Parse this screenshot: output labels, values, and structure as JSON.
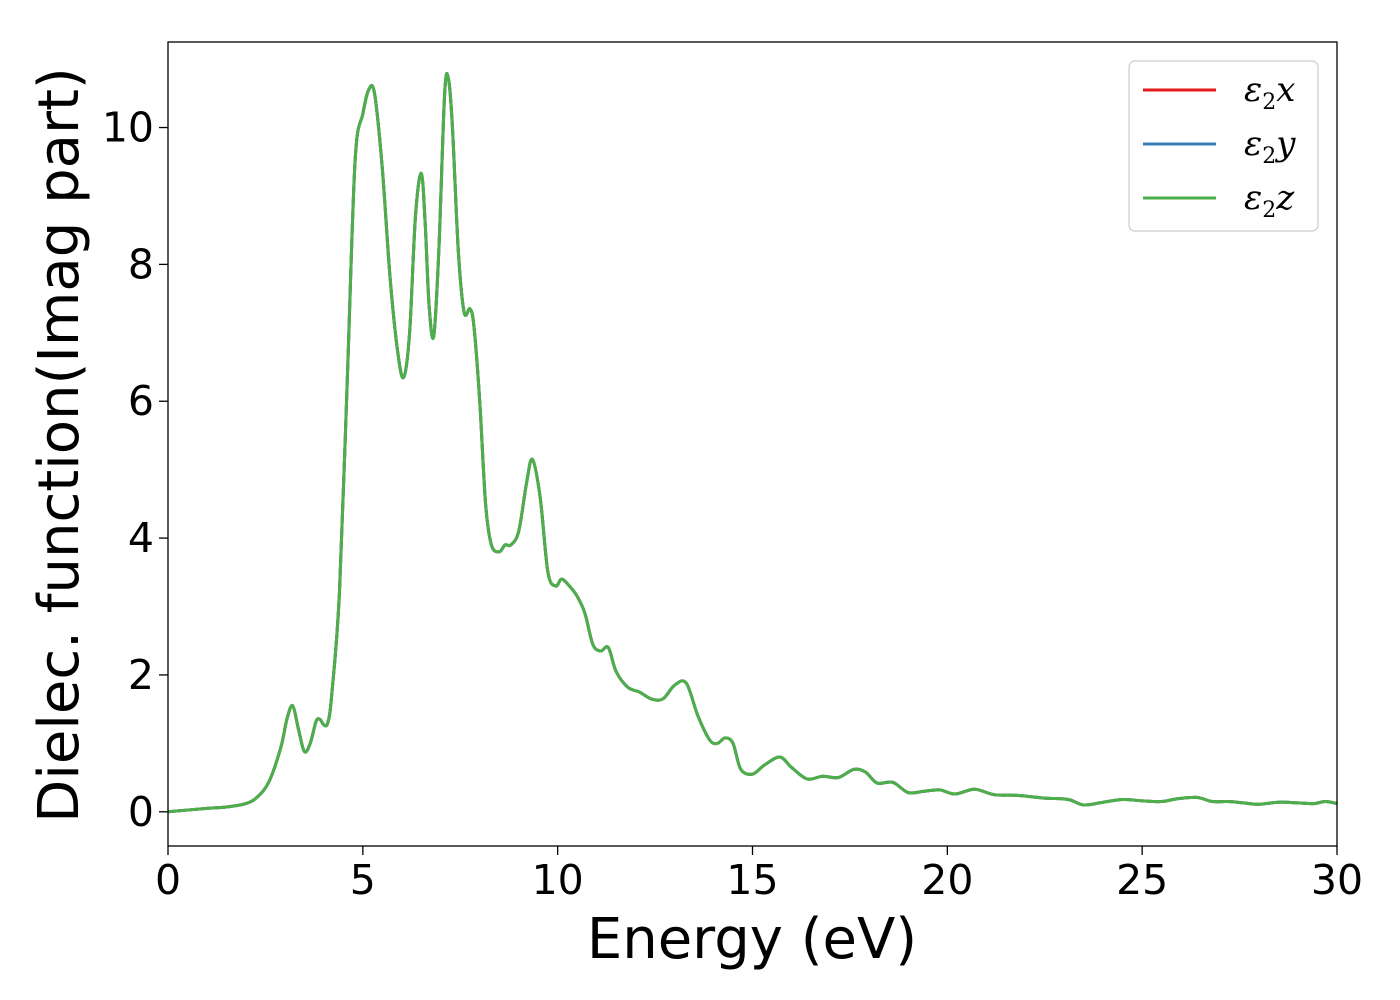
{
  "chart_data": {
    "type": "line",
    "title": "",
    "xlabel": "Energy (eV)",
    "ylabel": "Dielec. function(Imag part)",
    "xlim": [
      0,
      30
    ],
    "ylim": [
      -0.5,
      11.25
    ],
    "xticks": [
      0,
      5,
      10,
      15,
      20,
      25,
      30
    ],
    "xtick_labels": [
      "0",
      "5",
      "10",
      "15",
      "20",
      "25",
      "30"
    ],
    "yticks": [
      0,
      2,
      4,
      6,
      8,
      10
    ],
    "ytick_labels": [
      "0",
      "2",
      "4",
      "6",
      "8",
      "10"
    ],
    "grid": false,
    "legend_position": "top-right",
    "x": [
      0,
      1,
      1.5,
      2,
      2.3,
      2.6,
      2.9,
      3.05,
      3.2,
      3.35,
      3.5,
      3.65,
      3.8,
      3.9,
      4.0,
      4.1,
      4.2,
      4.4,
      4.6,
      4.8,
      5.0,
      5.15,
      5.3,
      5.5,
      5.7,
      5.9,
      6.05,
      6.2,
      6.35,
      6.5,
      6.6,
      6.7,
      6.82,
      6.95,
      7.1,
      7.2,
      7.3,
      7.45,
      7.6,
      7.75,
      7.85,
      8.0,
      8.15,
      8.3,
      8.5,
      8.65,
      8.8,
      9.0,
      9.2,
      9.35,
      9.55,
      9.75,
      9.95,
      10.1,
      10.3,
      10.5,
      10.7,
      10.9,
      11.1,
      11.3,
      11.5,
      11.8,
      12.1,
      12.4,
      12.7,
      13.0,
      13.3,
      13.6,
      13.9,
      14.1,
      14.3,
      14.5,
      14.7,
      15.0,
      15.3,
      15.7,
      16.0,
      16.4,
      16.8,
      17.2,
      17.6,
      17.9,
      18.2,
      18.6,
      19.0,
      19.4,
      19.8,
      20.2,
      20.7,
      21.2,
      21.8,
      22.5,
      23.1,
      23.5,
      24.0,
      24.5,
      25.0,
      25.5,
      25.9,
      26.4,
      26.8,
      27.2,
      27.6,
      28.0,
      28.5,
      29.0,
      29.4,
      29.7,
      30.0
    ],
    "series": [
      {
        "name": "ε2x",
        "color": "#e41a1c",
        "values": [
          0.0,
          0.05,
          0.07,
          0.12,
          0.22,
          0.45,
          0.95,
          1.35,
          1.55,
          1.2,
          0.88,
          1.0,
          1.32,
          1.35,
          1.27,
          1.3,
          1.7,
          3.2,
          6.3,
          9.5,
          10.2,
          10.55,
          10.5,
          9.4,
          7.8,
          6.7,
          6.35,
          7.0,
          8.7,
          9.33,
          8.6,
          7.4,
          6.95,
          8.2,
          10.5,
          10.7,
          10.0,
          8.2,
          7.3,
          7.35,
          7.1,
          6.0,
          4.5,
          3.9,
          3.8,
          3.9,
          3.9,
          4.1,
          4.8,
          5.15,
          4.6,
          3.5,
          3.3,
          3.4,
          3.3,
          3.15,
          2.9,
          2.45,
          2.35,
          2.4,
          2.05,
          1.82,
          1.75,
          1.65,
          1.65,
          1.85,
          1.88,
          1.4,
          1.05,
          1.0,
          1.08,
          1.0,
          0.62,
          0.55,
          0.68,
          0.8,
          0.65,
          0.48,
          0.52,
          0.5,
          0.62,
          0.58,
          0.42,
          0.43,
          0.28,
          0.3,
          0.32,
          0.26,
          0.33,
          0.25,
          0.24,
          0.2,
          0.18,
          0.1,
          0.14,
          0.18,
          0.16,
          0.15,
          0.19,
          0.21,
          0.15,
          0.15,
          0.13,
          0.11,
          0.14,
          0.13,
          0.12,
          0.15,
          0.12
        ]
      },
      {
        "name": "ε2y",
        "color": "#377eb8",
        "values": [
          0.0,
          0.05,
          0.07,
          0.12,
          0.22,
          0.45,
          0.95,
          1.35,
          1.55,
          1.2,
          0.88,
          1.0,
          1.32,
          1.35,
          1.27,
          1.3,
          1.7,
          3.2,
          6.3,
          9.5,
          10.2,
          10.55,
          10.5,
          9.4,
          7.8,
          6.7,
          6.35,
          7.0,
          8.7,
          9.33,
          8.6,
          7.4,
          6.95,
          8.2,
          10.5,
          10.7,
          10.0,
          8.2,
          7.3,
          7.35,
          7.1,
          6.0,
          4.5,
          3.9,
          3.8,
          3.9,
          3.9,
          4.1,
          4.8,
          5.15,
          4.6,
          3.5,
          3.3,
          3.4,
          3.3,
          3.15,
          2.9,
          2.45,
          2.35,
          2.4,
          2.05,
          1.82,
          1.75,
          1.65,
          1.65,
          1.85,
          1.88,
          1.4,
          1.05,
          1.0,
          1.08,
          1.0,
          0.62,
          0.55,
          0.68,
          0.8,
          0.65,
          0.48,
          0.52,
          0.5,
          0.62,
          0.58,
          0.42,
          0.43,
          0.28,
          0.3,
          0.32,
          0.26,
          0.33,
          0.25,
          0.24,
          0.2,
          0.18,
          0.1,
          0.14,
          0.18,
          0.16,
          0.15,
          0.19,
          0.21,
          0.15,
          0.15,
          0.13,
          0.11,
          0.14,
          0.13,
          0.12,
          0.15,
          0.12
        ]
      },
      {
        "name": "ε2z",
        "color": "#4daf4a",
        "values": [
          0.0,
          0.05,
          0.07,
          0.12,
          0.22,
          0.45,
          0.95,
          1.35,
          1.55,
          1.2,
          0.88,
          1.0,
          1.32,
          1.35,
          1.27,
          1.3,
          1.7,
          3.2,
          6.3,
          9.5,
          10.2,
          10.55,
          10.5,
          9.4,
          7.8,
          6.7,
          6.35,
          7.0,
          8.7,
          9.33,
          8.6,
          7.4,
          6.95,
          8.2,
          10.5,
          10.7,
          10.0,
          8.2,
          7.3,
          7.35,
          7.1,
          6.0,
          4.5,
          3.9,
          3.8,
          3.9,
          3.9,
          4.1,
          4.8,
          5.15,
          4.6,
          3.5,
          3.3,
          3.4,
          3.3,
          3.15,
          2.9,
          2.45,
          2.35,
          2.4,
          2.05,
          1.82,
          1.75,
          1.65,
          1.65,
          1.85,
          1.88,
          1.4,
          1.05,
          1.0,
          1.08,
          1.0,
          0.62,
          0.55,
          0.68,
          0.8,
          0.65,
          0.48,
          0.52,
          0.5,
          0.62,
          0.58,
          0.42,
          0.43,
          0.28,
          0.3,
          0.32,
          0.26,
          0.33,
          0.25,
          0.24,
          0.2,
          0.18,
          0.1,
          0.14,
          0.18,
          0.16,
          0.15,
          0.19,
          0.21,
          0.15,
          0.15,
          0.13,
          0.11,
          0.14,
          0.13,
          0.12,
          0.15,
          0.12
        ]
      }
    ]
  }
}
